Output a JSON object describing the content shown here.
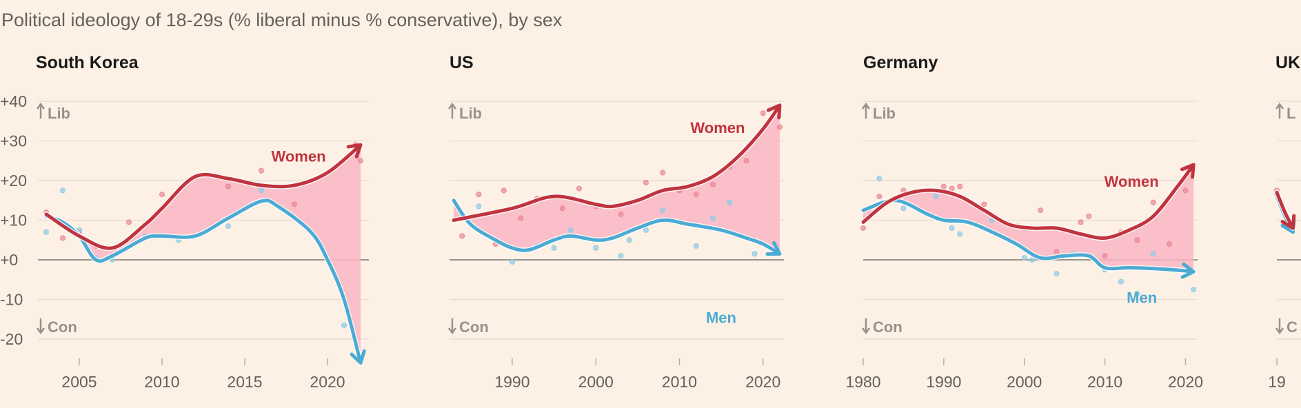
{
  "title": "Political ideology of 18-29s (% liberal minus % conservative), by sex",
  "chart_data": [
    {
      "type": "line",
      "title": "South Korea",
      "ylim": [
        -24,
        40
      ],
      "yticks": [
        40,
        30,
        20,
        10,
        0,
        -10,
        -20
      ],
      "ytick_labels": [
        "+40",
        "+30",
        "+20",
        "+10",
        "+0",
        "-10",
        "-20"
      ],
      "xlim": [
        2002.5,
        2022.5
      ],
      "xticks": [
        2005,
        2010,
        2015,
        2020
      ],
      "grid": true,
      "annotations": {
        "lib": "Lib",
        "con": "Con"
      },
      "series": [
        {
          "name": "Women",
          "color": "#c0343f",
          "x": [
            2003,
            2005,
            2007,
            2009,
            2010,
            2012,
            2014,
            2016,
            2018,
            2020,
            2022
          ],
          "y": [
            11.5,
            6,
            3,
            9,
            13,
            21,
            20.5,
            18.8,
            18.8,
            22,
            29
          ]
        },
        {
          "name": "Men",
          "color": "#4aabd4",
          "x": [
            2003,
            2004,
            2005,
            2006,
            2007,
            2009,
            2010,
            2012,
            2014,
            2016,
            2017,
            2019,
            2020,
            2021,
            2022
          ],
          "y": [
            11,
            9.5,
            6,
            0,
            1,
            5.5,
            6,
            6,
            10.5,
            14.8,
            13.5,
            7,
            0,
            -10,
            -26
          ]
        }
      ],
      "scatter": [
        {
          "series": "Women",
          "x": [
            2003,
            2004,
            2005,
            2006,
            2008,
            2010,
            2014,
            2016,
            2018,
            2021.7,
            2022
          ],
          "y": [
            12,
            5.5,
            7,
            3.5,
            9.5,
            16.5,
            18.5,
            22.5,
            14,
            29,
            25
          ]
        },
        {
          "series": "Men",
          "x": [
            2003,
            2004,
            2005,
            2006,
            2007,
            2009,
            2011,
            2014,
            2016,
            2021
          ],
          "y": [
            7,
            17.5,
            7.5,
            0.5,
            0,
            6,
            5,
            8.5,
            17.5,
            -16.5
          ]
        }
      ]
    },
    {
      "type": "line",
      "title": "US",
      "ylim": [
        -24,
        40
      ],
      "yticks": [
        40,
        30,
        20,
        10,
        0,
        -10,
        -20
      ],
      "xlim": [
        1982.5,
        2022.5
      ],
      "xticks": [
        1990,
        2000,
        2010,
        2020
      ],
      "grid": true,
      "annotations": {
        "lib": "Lib",
        "con": "Con"
      },
      "series": [
        {
          "name": "Women",
          "color": "#c0343f",
          "x": [
            1983,
            1990,
            1995,
            2000,
            2002,
            2005,
            2008,
            2011,
            2014,
            2017,
            2020,
            2022
          ],
          "y": [
            10,
            13,
            16,
            14,
            13.5,
            15,
            17.5,
            18.5,
            21,
            26,
            33,
            39
          ]
        },
        {
          "name": "Men",
          "color": "#4aabd4",
          "x": [
            1983,
            1985,
            1988,
            1990,
            1992,
            1995,
            1997,
            2000,
            2002,
            2005,
            2008,
            2011,
            2015,
            2018,
            2020,
            2022
          ],
          "y": [
            15,
            9,
            5,
            3,
            2.5,
            5,
            6,
            5,
            5.5,
            8,
            10,
            9,
            7.5,
            5.5,
            4,
            1.5
          ]
        }
      ],
      "scatter": [
        {
          "series": "Women",
          "x": [
            1984,
            1986,
            1988,
            1989,
            1991,
            1993,
            1996,
            1998,
            2000,
            2003,
            2006,
            2008,
            2010,
            2012,
            2014,
            2016,
            2018,
            2020,
            2022
          ],
          "y": [
            6,
            16.5,
            4,
            17.5,
            10.5,
            15.5,
            13,
            18,
            13.5,
            11.5,
            19.5,
            22,
            17.5,
            16.5,
            19,
            23.5,
            25,
            37,
            33.5
          ]
        },
        {
          "series": "Men",
          "x": [
            1984,
            1986,
            1990,
            1993,
            1995,
            1997,
            2000,
            2003,
            2004,
            2006,
            2008,
            2012,
            2014,
            2016,
            2019
          ],
          "y": [
            11.5,
            13.5,
            -0.5,
            3.5,
            3,
            7.5,
            3,
            1,
            5,
            7.5,
            12.5,
            3.5,
            10.5,
            14.5,
            1.5
          ]
        }
      ]
    },
    {
      "type": "line",
      "title": "Germany",
      "ylim": [
        -24,
        40
      ],
      "yticks": [
        40,
        30,
        20,
        10,
        0,
        -10,
        -20
      ],
      "xlim": [
        1980,
        2021.5
      ],
      "xticks": [
        1980,
        1990,
        2000,
        2010,
        2020
      ],
      "grid": true,
      "annotations": {
        "lib": "Lib",
        "con": "Con"
      },
      "series": [
        {
          "name": "Women",
          "color": "#c0343f",
          "x": [
            1980,
            1983,
            1986,
            1989,
            1992,
            1995,
            1998,
            2001,
            2004,
            2007,
            2010,
            2013,
            2016,
            2019,
            2021
          ],
          "y": [
            9.5,
            14.5,
            17,
            17.5,
            16,
            12.5,
            9,
            8,
            8,
            6.5,
            5.5,
            7.5,
            11,
            18.5,
            24
          ]
        },
        {
          "name": "Men",
          "color": "#4aabd4",
          "x": [
            1980,
            1984,
            1988,
            1990,
            1993,
            1996,
            1999,
            2002,
            2005,
            2008,
            2010,
            2013,
            2016,
            2019,
            2021
          ],
          "y": [
            12.5,
            15,
            11.5,
            10,
            9.5,
            7,
            4,
            0.5,
            1,
            1,
            -2,
            -2,
            -2.2,
            -2.6,
            -3
          ]
        }
      ],
      "scatter": [
        {
          "series": "Women",
          "x": [
            1980,
            1982,
            1985,
            1990,
            1991,
            1992,
            1995,
            1999,
            2002,
            2004,
            2007,
            2008,
            2010,
            2012,
            2014,
            2016,
            2018,
            2020
          ],
          "y": [
            8,
            16,
            17.5,
            18.5,
            18,
            18.5,
            14,
            8.5,
            12.5,
            2,
            9.5,
            11,
            1,
            7,
            5,
            14.5,
            4,
            17.5
          ]
        },
        {
          "series": "Men",
          "x": [
            1982,
            1985,
            1989,
            1991,
            1992,
            1996,
            2000,
            2001,
            2004,
            2006,
            2010,
            2012,
            2014,
            2016,
            2021
          ],
          "y": [
            20.5,
            13,
            16,
            8,
            6.5,
            10,
            0.5,
            0,
            -3.5,
            1.5,
            -2.5,
            -5.5,
            -8.5,
            1.5,
            -7.5
          ]
        }
      ]
    },
    {
      "type": "line",
      "title": "UK",
      "ylim": [
        -24,
        40
      ],
      "yticks": [
        40,
        30,
        20,
        10,
        0,
        -10,
        -20
      ],
      "xlim": [
        1980,
        2021.5
      ],
      "xticks": [
        1980
      ],
      "xtick_labels": [
        "19"
      ],
      "grid": true,
      "annotations": {
        "lib": "L",
        "con": "C"
      },
      "series": [
        {
          "name": "Women",
          "color": "#c0343f",
          "x": [
            1980,
            1981,
            1982
          ],
          "y": [
            17,
            12,
            8
          ]
        },
        {
          "name": "Men",
          "color": "#4aabd4",
          "x": [
            1980,
            1981,
            1982
          ],
          "y": [
            16,
            11,
            7
          ]
        }
      ],
      "scatter": [
        {
          "series": "Women",
          "x": [
            1980
          ],
          "y": [
            17.5
          ]
        },
        {
          "series": "Men",
          "x": [
            1980
          ],
          "y": [
            16.5
          ]
        }
      ]
    }
  ]
}
